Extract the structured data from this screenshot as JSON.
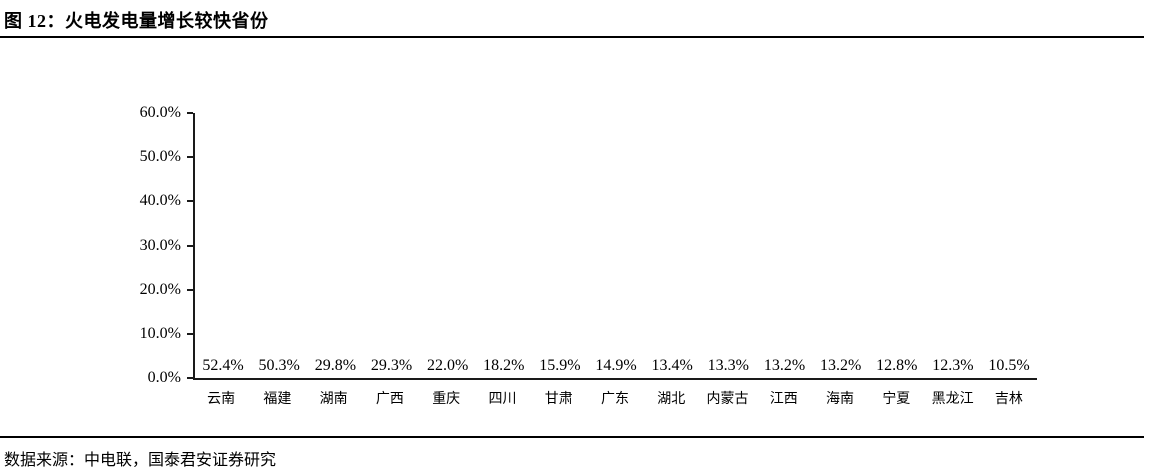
{
  "header": {
    "title": "图 12：火电发电量增长较快省份"
  },
  "chart_data": {
    "type": "bar",
    "title": "火电发电量增长较快省份",
    "categories": [
      "云南",
      "福建",
      "湖南",
      "广西",
      "重庆",
      "四川",
      "甘肃",
      "广东",
      "湖北",
      "内蒙古",
      "江西",
      "海南",
      "宁夏",
      "黑龙江",
      "吉林"
    ],
    "values": [
      52.4,
      50.3,
      29.8,
      29.3,
      22.0,
      18.2,
      15.9,
      14.9,
      13.4,
      13.3,
      13.2,
      13.2,
      12.8,
      12.3,
      10.5
    ],
    "value_labels": [
      "52.4%",
      "50.3%",
      "29.8%",
      "29.3%",
      "22.0%",
      "18.2%",
      "15.9%",
      "14.9%",
      "13.4%",
      "13.3%",
      "13.2%",
      "13.2%",
      "12.8%",
      "12.3%",
      "10.5%"
    ],
    "xlabel": "",
    "ylabel": "",
    "ylim": [
      0,
      60
    ],
    "ytick_labels": [
      "60.0%",
      "50.0%",
      "40.0%",
      "30.0%",
      "20.0%",
      "10.0%",
      "0.0%"
    ],
    "grid": false,
    "legend": "none",
    "bar_color": "#5B9BD5",
    "axis_color": "#1a1a1a"
  },
  "footer": {
    "source_note": "数据来源：中电联，国泰君安证券研究"
  }
}
